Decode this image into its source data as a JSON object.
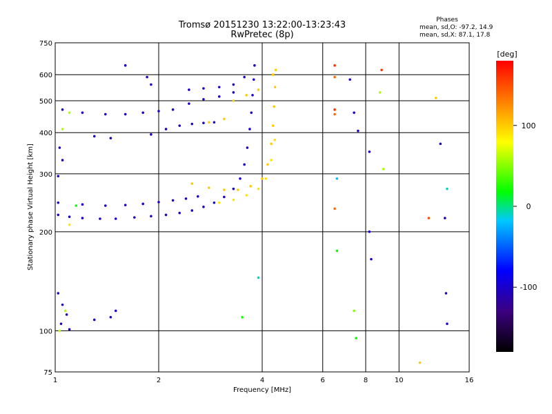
{
  "chart_data": {
    "type": "scatter",
    "title": "Tromsø 20151230 13:22:00-13:23:43",
    "subtitle": "RwPretec (8p)",
    "phases_box": {
      "title": "Phases",
      "line_o": "mean, sd,O: -97.2, 14.9",
      "line_x": "mean, sd,X: 87.1, 17.8"
    },
    "xlabel": "Frequency [MHz]",
    "ylabel": "Stationary phase Virtual Height [km]",
    "x_scale": "log",
    "y_scale": "log",
    "xlim": [
      1,
      16
    ],
    "ylim": [
      75,
      750
    ],
    "x_ticks": [
      1,
      2,
      4,
      6,
      8,
      10,
      16
    ],
    "x_tick_labels": [
      "1",
      "2",
      "4",
      "6",
      "8",
      "10",
      "16"
    ],
    "y_ticks": [
      75,
      100,
      200,
      300,
      400,
      500,
      600,
      750
    ],
    "y_tick_labels": [
      "75",
      "100",
      "200",
      "300",
      "400",
      "500",
      "600",
      "750"
    ],
    "grid": true,
    "colorbar": {
      "unit": "[deg]",
      "range": [
        -180,
        180
      ],
      "ticks": [
        100,
        0,
        -100
      ],
      "tick_labels": [
        "100",
        "0",
        "-100"
      ],
      "stops": [
        "#000000",
        "#3c0080",
        "#0000ff",
        "#00c8ff",
        "#00ff00",
        "#ffff00",
        "#ff8000",
        "#ff0000"
      ]
    },
    "series": [
      {
        "values": [
          {
            "x": 1.02,
            "y": 225,
            "phase": -100
          },
          {
            "x": 1.1,
            "y": 222,
            "phase": -100
          },
          {
            "x": 1.2,
            "y": 220,
            "phase": -100
          },
          {
            "x": 1.35,
            "y": 219,
            "phase": -100
          },
          {
            "x": 1.5,
            "y": 219,
            "phase": -100
          },
          {
            "x": 1.7,
            "y": 221,
            "phase": -100
          },
          {
            "x": 1.9,
            "y": 223,
            "phase": -100
          },
          {
            "x": 2.1,
            "y": 225,
            "phase": -100
          },
          {
            "x": 2.3,
            "y": 228,
            "phase": -100
          },
          {
            "x": 2.5,
            "y": 232,
            "phase": -100
          },
          {
            "x": 2.7,
            "y": 238,
            "phase": -100
          },
          {
            "x": 2.9,
            "y": 245,
            "phase": -100
          },
          {
            "x": 3.1,
            "y": 255,
            "phase": -100
          },
          {
            "x": 3.3,
            "y": 270,
            "phase": -100
          },
          {
            "x": 3.45,
            "y": 290,
            "phase": -100
          },
          {
            "x": 3.55,
            "y": 320,
            "phase": -100
          },
          {
            "x": 3.62,
            "y": 360,
            "phase": -100
          },
          {
            "x": 3.68,
            "y": 410,
            "phase": -100
          },
          {
            "x": 3.72,
            "y": 460,
            "phase": -100
          },
          {
            "x": 3.75,
            "y": 520,
            "phase": -100
          },
          {
            "x": 3.78,
            "y": 580,
            "phase": -100
          },
          {
            "x": 3.8,
            "y": 640,
            "phase": -100
          },
          {
            "x": 1.02,
            "y": 245,
            "phase": -100
          },
          {
            "x": 1.2,
            "y": 242,
            "phase": -100
          },
          {
            "x": 1.4,
            "y": 240,
            "phase": -100
          },
          {
            "x": 1.6,
            "y": 241,
            "phase": -100
          },
          {
            "x": 1.8,
            "y": 243,
            "phase": -100
          },
          {
            "x": 2.0,
            "y": 246,
            "phase": -100
          },
          {
            "x": 2.2,
            "y": 249,
            "phase": -100
          },
          {
            "x": 2.4,
            "y": 252,
            "phase": -100
          },
          {
            "x": 2.6,
            "y": 256,
            "phase": -100
          },
          {
            "x": 1.3,
            "y": 390,
            "phase": -100
          },
          {
            "x": 1.45,
            "y": 385,
            "phase": -100
          },
          {
            "x": 1.9,
            "y": 395,
            "phase": -100
          },
          {
            "x": 2.1,
            "y": 410,
            "phase": -100
          },
          {
            "x": 2.3,
            "y": 420,
            "phase": -100
          },
          {
            "x": 2.5,
            "y": 425,
            "phase": -100
          },
          {
            "x": 2.7,
            "y": 428,
            "phase": -100
          },
          {
            "x": 2.9,
            "y": 430,
            "phase": -100
          },
          {
            "x": 1.2,
            "y": 460,
            "phase": -100
          },
          {
            "x": 1.4,
            "y": 455,
            "phase": -100
          },
          {
            "x": 1.6,
            "y": 455,
            "phase": -100
          },
          {
            "x": 1.8,
            "y": 460,
            "phase": -100
          },
          {
            "x": 2.0,
            "y": 465,
            "phase": -100
          },
          {
            "x": 2.2,
            "y": 470,
            "phase": -100
          },
          {
            "x": 2.45,
            "y": 490,
            "phase": -100
          },
          {
            "x": 2.7,
            "y": 505,
            "phase": -100
          },
          {
            "x": 3.0,
            "y": 515,
            "phase": -100
          },
          {
            "x": 3.3,
            "y": 530,
            "phase": -100
          },
          {
            "x": 2.45,
            "y": 540,
            "phase": -100
          },
          {
            "x": 2.7,
            "y": 545,
            "phase": -100
          },
          {
            "x": 3.0,
            "y": 550,
            "phase": -100
          },
          {
            "x": 3.3,
            "y": 560,
            "phase": -100
          },
          {
            "x": 3.55,
            "y": 590,
            "phase": -100
          },
          {
            "x": 1.6,
            "y": 640,
            "phase": -100
          },
          {
            "x": 1.85,
            "y": 590,
            "phase": -100
          },
          {
            "x": 1.9,
            "y": 560,
            "phase": -100
          },
          {
            "x": 1.05,
            "y": 470,
            "phase": -100
          },
          {
            "x": 1.03,
            "y": 360,
            "phase": -100
          },
          {
            "x": 1.05,
            "y": 330,
            "phase": -100
          },
          {
            "x": 1.02,
            "y": 295,
            "phase": -100
          },
          {
            "x": 1.02,
            "y": 130,
            "phase": -100
          },
          {
            "x": 1.05,
            "y": 120,
            "phase": -100
          },
          {
            "x": 1.08,
            "y": 112,
            "phase": -100
          },
          {
            "x": 1.04,
            "y": 105,
            "phase": -100
          },
          {
            "x": 1.1,
            "y": 101,
            "phase": -100
          },
          {
            "x": 1.3,
            "y": 108,
            "phase": -100
          },
          {
            "x": 1.45,
            "y": 110,
            "phase": -100
          },
          {
            "x": 1.5,
            "y": 115,
            "phase": -100
          },
          {
            "x": 2.5,
            "y": 280,
            "phase": 100
          },
          {
            "x": 2.8,
            "y": 272,
            "phase": 100
          },
          {
            "x": 3.1,
            "y": 268,
            "phase": 100
          },
          {
            "x": 3.4,
            "y": 268,
            "phase": 100
          },
          {
            "x": 3.7,
            "y": 275,
            "phase": 100
          },
          {
            "x": 4.0,
            "y": 290,
            "phase": 100
          },
          {
            "x": 4.15,
            "y": 320,
            "phase": 100
          },
          {
            "x": 4.25,
            "y": 370,
            "phase": 100
          },
          {
            "x": 4.3,
            "y": 420,
            "phase": 100
          },
          {
            "x": 4.33,
            "y": 480,
            "phase": 100
          },
          {
            "x": 4.36,
            "y": 550,
            "phase": 100
          },
          {
            "x": 4.38,
            "y": 620,
            "phase": 100
          },
          {
            "x": 3.0,
            "y": 245,
            "phase": 90
          },
          {
            "x": 3.3,
            "y": 250,
            "phase": 90
          },
          {
            "x": 3.6,
            "y": 258,
            "phase": 90
          },
          {
            "x": 3.9,
            "y": 270,
            "phase": 90
          },
          {
            "x": 4.1,
            "y": 290,
            "phase": 90
          },
          {
            "x": 4.25,
            "y": 330,
            "phase": 90
          },
          {
            "x": 4.35,
            "y": 380,
            "phase": 90
          },
          {
            "x": 2.8,
            "y": 430,
            "phase": 100
          },
          {
            "x": 3.1,
            "y": 440,
            "phase": 100
          },
          {
            "x": 3.3,
            "y": 500,
            "phase": 100
          },
          {
            "x": 3.6,
            "y": 520,
            "phase": 100
          },
          {
            "x": 3.9,
            "y": 540,
            "phase": 100
          },
          {
            "x": 4.3,
            "y": 600,
            "phase": 100
          },
          {
            "x": 1.1,
            "y": 210,
            "phase": 90
          },
          {
            "x": 1.15,
            "y": 240,
            "phase": 20
          },
          {
            "x": 1.05,
            "y": 410,
            "phase": 60
          },
          {
            "x": 1.1,
            "y": 460,
            "phase": 60
          },
          {
            "x": 1.07,
            "y": 115,
            "phase": 60
          },
          {
            "x": 1.03,
            "y": 100,
            "phase": 60
          },
          {
            "x": 6.5,
            "y": 640,
            "phase": 160
          },
          {
            "x": 6.5,
            "y": 590,
            "phase": 140
          },
          {
            "x": 6.5,
            "y": 470,
            "phase": 160
          },
          {
            "x": 6.5,
            "y": 455,
            "phase": 140
          },
          {
            "x": 6.6,
            "y": 290,
            "phase": -20
          },
          {
            "x": 6.5,
            "y": 235,
            "phase": 140
          },
          {
            "x": 6.6,
            "y": 175,
            "phase": 20
          },
          {
            "x": 7.2,
            "y": 580,
            "phase": -100
          },
          {
            "x": 7.4,
            "y": 460,
            "phase": -100
          },
          {
            "x": 7.6,
            "y": 405,
            "phase": -100
          },
          {
            "x": 7.5,
            "y": 95,
            "phase": 20
          },
          {
            "x": 7.4,
            "y": 115,
            "phase": 50
          },
          {
            "x": 8.2,
            "y": 350,
            "phase": -100
          },
          {
            "x": 8.2,
            "y": 200,
            "phase": -100
          },
          {
            "x": 8.3,
            "y": 165,
            "phase": -100
          },
          {
            "x": 8.8,
            "y": 530,
            "phase": 60
          },
          {
            "x": 8.9,
            "y": 620,
            "phase": 160
          },
          {
            "x": 9.0,
            "y": 310,
            "phase": 60
          },
          {
            "x": 11.5,
            "y": 80,
            "phase": 100
          },
          {
            "x": 12.2,
            "y": 220,
            "phase": 150
          },
          {
            "x": 12.8,
            "y": 510,
            "phase": 100
          },
          {
            "x": 13.2,
            "y": 370,
            "phase": -100
          },
          {
            "x": 13.6,
            "y": 220,
            "phase": -100
          },
          {
            "x": 13.7,
            "y": 130,
            "phase": -100
          },
          {
            "x": 13.8,
            "y": 105,
            "phase": -100
          },
          {
            "x": 13.8,
            "y": 270,
            "phase": -10
          },
          {
            "x": 3.9,
            "y": 145,
            "phase": -10
          },
          {
            "x": 3.5,
            "y": 110,
            "phase": 20
          }
        ]
      }
    ]
  }
}
